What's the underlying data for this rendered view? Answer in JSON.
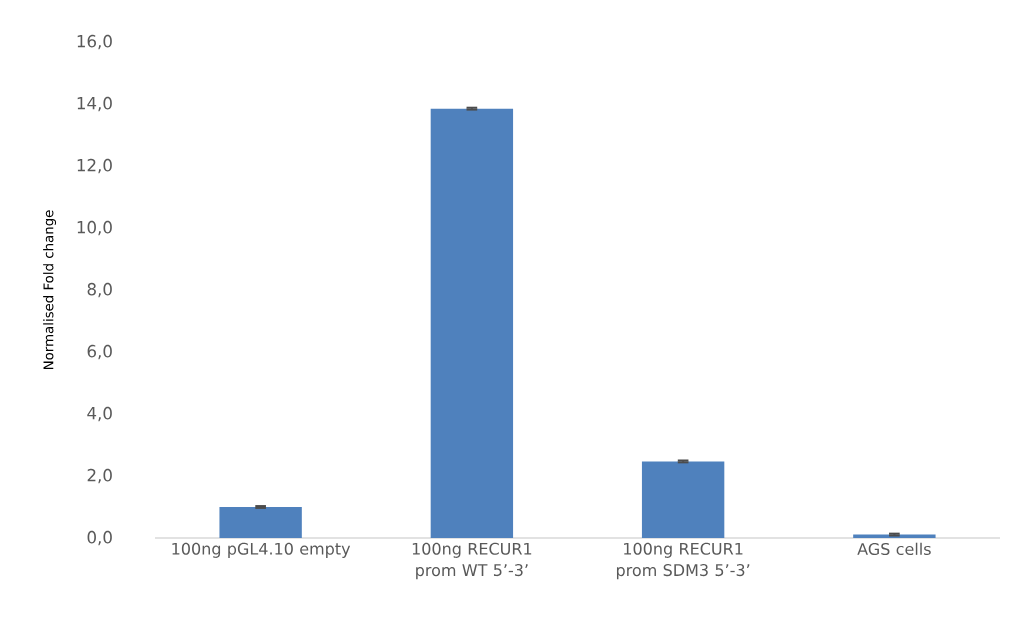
{
  "chart_data": {
    "type": "bar",
    "ylabel": "Normalised Fold change",
    "categories": [
      "100ng pGL4.10 empty",
      "100ng RECUR1 prom WT 5’-3’",
      "100ng RECUR1 prom SDM3 5’-3’",
      "AGS cells"
    ],
    "values": [
      1.0,
      13.85,
      2.47,
      0.11
    ],
    "errors": [
      0.03,
      0.03,
      0.03,
      0.03
    ],
    "color": "#4f81bd",
    "ylim": [
      0,
      16
    ],
    "yticks": [
      {
        "value": 0,
        "label": "0,0"
      },
      {
        "value": 2,
        "label": "2,0"
      },
      {
        "value": 4,
        "label": "4,0"
      },
      {
        "value": 6,
        "label": "6,0"
      },
      {
        "value": 8,
        "label": "8,0"
      },
      {
        "value": 10,
        "label": "10,0"
      },
      {
        "value": 12,
        "label": "12,0"
      },
      {
        "value": 14,
        "label": "14,0"
      },
      {
        "value": 16,
        "label": "16,0"
      }
    ],
    "grid": false
  }
}
